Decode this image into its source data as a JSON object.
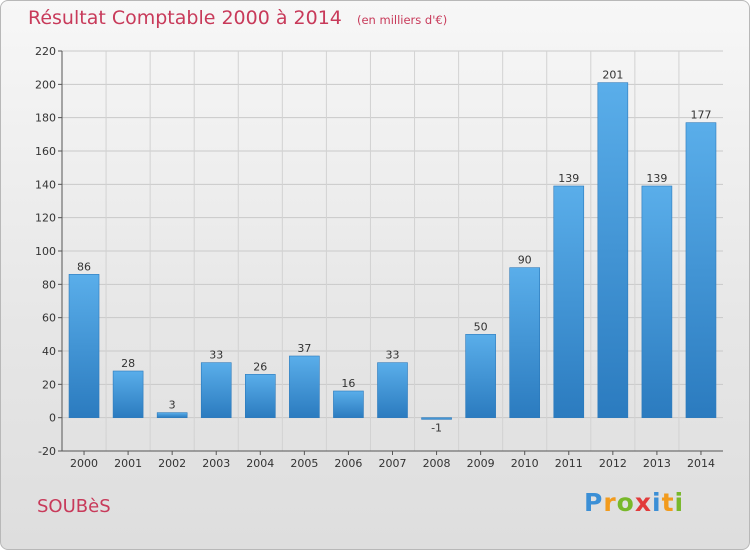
{
  "chart_data": {
    "type": "bar",
    "title": "Résultat Comptable 2000 à 2014",
    "subtitle": "(en milliers d'€)",
    "categories": [
      "2000",
      "2001",
      "2002",
      "2003",
      "2004",
      "2005",
      "2006",
      "2007",
      "2008",
      "2009",
      "2010",
      "2011",
      "2012",
      "2013",
      "2014"
    ],
    "values": [
      86,
      28,
      3,
      33,
      26,
      37,
      16,
      33,
      -1,
      50,
      90,
      139,
      201,
      139,
      177
    ],
    "value_labels": [
      "86",
      "28",
      "3",
      "33",
      "26",
      "37",
      "16",
      "33",
      "-1",
      "50",
      "90",
      "139",
      "201",
      "139",
      "177"
    ],
    "ylim": [
      -20,
      220
    ],
    "yticks": [
      -20,
      0,
      20,
      40,
      60,
      80,
      100,
      120,
      140,
      160,
      180,
      200,
      220
    ],
    "ytick_labels": [
      "-20",
      "0",
      "20",
      "40",
      "60",
      "80",
      "100",
      "120",
      "140",
      "160",
      "180",
      "200",
      "220"
    ],
    "grid": true,
    "bar_color": "#3a8fd4"
  },
  "footer": {
    "commune": "SOUBèS",
    "logo_letters": [
      "P",
      "r",
      "o",
      "x",
      "i",
      "t",
      "i"
    ],
    "logo_colors": [
      "#3b8fd6",
      "#f29b1d",
      "#78b82a",
      "#e23b3b",
      "#3b8fd6",
      "#f29b1d",
      "#78b82a"
    ]
  }
}
